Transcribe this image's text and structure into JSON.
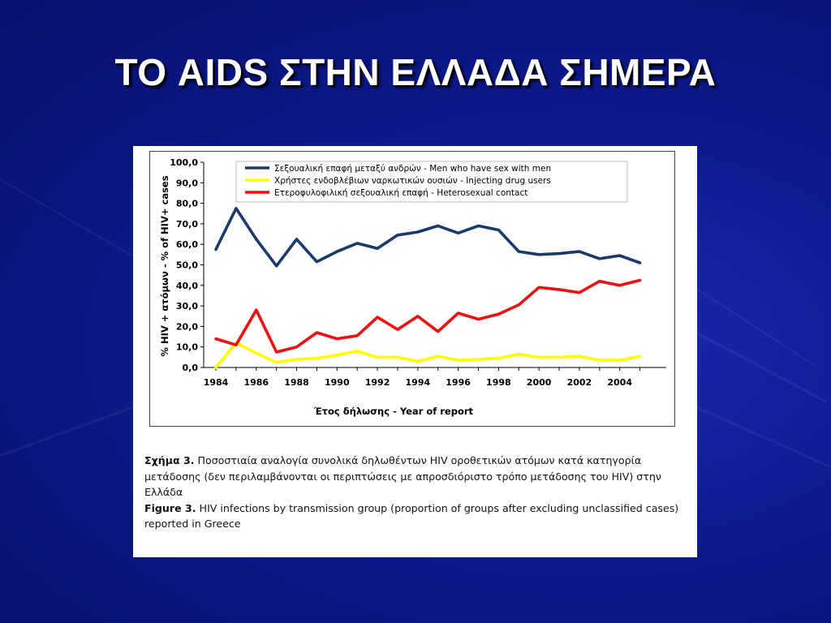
{
  "slide": {
    "title": "ΤΟ AIDS ΣΤΗΝ ΕΛΛΑΔΑ ΣΗΜΕΡΑ"
  },
  "colors": {
    "background": "#0d1a8e",
    "msm": "#1b3a6b",
    "idu": "#ffff00",
    "hetero": "#ee1111"
  },
  "chart_data": {
    "type": "line",
    "xlabel": "Έτος δήλωσης - Year of report",
    "ylabel": "% HIV + ατόμων -   % of HIV+ cases",
    "ylim": [
      0,
      100
    ],
    "y_ticks": [
      "0,0",
      "10,0",
      "20,0",
      "30,0",
      "40,0",
      "50,0",
      "60,0",
      "70,0",
      "80,0",
      "90,0",
      "100,0"
    ],
    "x_ticks": [
      "1984",
      "1986",
      "1988",
      "1990",
      "1992",
      "1994",
      "1996",
      "1998",
      "2000",
      "2002",
      "2004"
    ],
    "x": [
      1984,
      1985,
      1986,
      1987,
      1988,
      1989,
      1990,
      1991,
      1992,
      1993,
      1994,
      1995,
      1996,
      1997,
      1998,
      1999,
      2000,
      2001,
      2002,
      2003,
      2004,
      2005
    ],
    "legend_position": "top",
    "series": [
      {
        "name": "Σεξουαλική επαφή μεταξύ ανδρών - Men who have sex with men",
        "color": "#1b3a6b",
        "values": [
          57.5,
          77.5,
          62.5,
          49.5,
          62.5,
          51.5,
          56.5,
          60.5,
          58,
          64.5,
          66,
          69,
          65.5,
          69,
          67,
          56.5,
          55,
          55.5,
          56.5,
          53,
          54.5,
          51
        ]
      },
      {
        "name": "Χρήστες ενδοβλέβιων ναρκωτικών ουσιών - Injecting drug users",
        "color": "#ffff00",
        "values": [
          0,
          12,
          7,
          2.5,
          4,
          4.5,
          6,
          8,
          5,
          5,
          3,
          5.5,
          3.5,
          4,
          4.5,
          6.5,
          5,
          5,
          5.5,
          3.5,
          3.5,
          5.5
        ]
      },
      {
        "name": "Ετεροφυλοφιλική σεξουαλική επαφή - Heterosexual contact",
        "color": "#ee1111",
        "values": [
          14,
          11,
          28,
          7.5,
          10,
          17,
          14,
          15.5,
          24.5,
          18.5,
          25,
          17.5,
          26.5,
          23.5,
          26,
          30.5,
          39,
          38,
          36.5,
          42,
          40,
          42.5
        ]
      }
    ]
  },
  "caption": {
    "greek_label": "Σχήμα 3.",
    "greek_text": " Ποσοστιαία αναλογία συνολικά  δηλωθέντων  HIV οροθετικών ατόμων κατά κατηγορία μετάδοσης (δεν περιλαμβάνονται οι περιπτώσεις με απροσδιόριστο τρόπο μετάδοσης του HIV) στην Ελλάδα",
    "english_label": "Figure 3.",
    "english_text": " HIV infections by transmission group (proportion of groups after excluding unclassified cases) reported in Greece"
  }
}
